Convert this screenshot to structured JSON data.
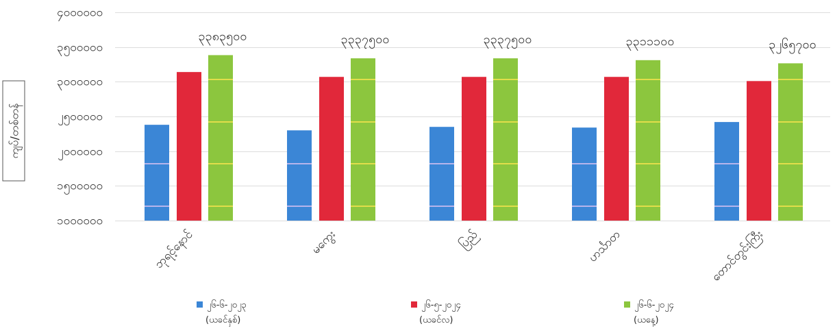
{
  "chart_data": {
    "type": "bar",
    "ylabel": "ကျပ်/တစ်တန်",
    "ylim": [
      1000000,
      4000000
    ],
    "yticks": [
      1000000,
      1500000,
      2000000,
      2500000,
      3000000,
      3500000,
      4000000
    ],
    "ytick_labels": [
      "၁၀၀၀၀၀၀",
      "၁၅၀၀၀၀၀",
      "၂၀၀၀၀၀၀",
      "၂၅၀၀၀၀၀",
      "၃၀၀၀၀၀၀",
      "၃၅၀၀၀၀၀",
      "၄၀၀၀၀၀၀"
    ],
    "categories": [
      "ဘုရင့်နောင်",
      "မကွေး",
      "ပြည်",
      "ဟင်္သာတ",
      "တောင်တွင်းကြီး"
    ],
    "series": [
      {
        "name": "၂၆-၆-၂၀၂၃",
        "note": "(ယခင်နှစ်)",
        "color": "#3b86d6",
        "values": [
          2380000,
          2300000,
          2350000,
          2340000,
          2420000
        ]
      },
      {
        "name": "၂၆-၅-၂၀၂၄",
        "note": "(ယခင်လ)",
        "color": "#e1283a",
        "values": [
          3140000,
          3070000,
          3070000,
          3070000,
          3010000
        ]
      },
      {
        "name": "၂၆-၆-၂၀၂၄",
        "note": "(ယနေ့)",
        "color": "#8cc63e",
        "values": [
          3383500,
          3337500,
          3337500,
          3311100,
          3265700
        ],
        "data_labels": [
          "၃၃၈၃၅၀၀",
          "၃၃၃၇၅၀၀",
          "၃၃၃၇၅၀၀",
          "၃၃၁၁၁၀၀",
          "၃၂၆၅၇၀၀"
        ]
      }
    ],
    "grid": true,
    "legend": "bottom"
  }
}
